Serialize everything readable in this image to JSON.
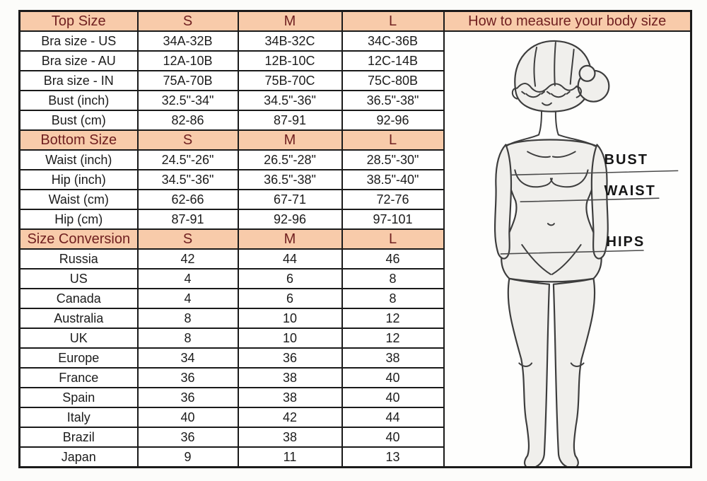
{
  "colors": {
    "header_bg": "#f8cbaa",
    "header_text": "#702020",
    "cell_text": "#1c1c1c",
    "border": "#1a1a1a",
    "figure_fill": "#f0efec",
    "figure_stroke": "#3d3d3d"
  },
  "table": {
    "sections": [
      {
        "header": {
          "label": "Top Size",
          "cols": [
            "S",
            "M",
            "L"
          ]
        },
        "rows": [
          {
            "label": "Bra size - US",
            "values": [
              "34A-32B",
              "34B-32C",
              "34C-36B"
            ]
          },
          {
            "label": "Bra size - AU",
            "values": [
              "12A-10B",
              "12B-10C",
              "12C-14B"
            ]
          },
          {
            "label": "Bra size - IN",
            "values": [
              "75A-70B",
              "75B-70C",
              "75C-80B"
            ]
          },
          {
            "label": "Bust (inch)",
            "values": [
              "32.5\"-34\"",
              "34.5\"-36\"",
              "36.5\"-38\""
            ]
          },
          {
            "label": "Bust (cm)",
            "values": [
              "82-86",
              "87-91",
              "92-96"
            ]
          }
        ]
      },
      {
        "header": {
          "label": "Bottom Size",
          "cols": [
            "S",
            "M",
            "L"
          ]
        },
        "rows": [
          {
            "label": "Waist (inch)",
            "values": [
              "24.5\"-26\"",
              "26.5\"-28\"",
              "28.5\"-30\""
            ]
          },
          {
            "label": "Hip (inch)",
            "values": [
              "34.5\"-36\"",
              "36.5\"-38\"",
              "38.5\"-40\""
            ]
          },
          {
            "label": "Waist (cm)",
            "values": [
              "62-66",
              "67-71",
              "72-76"
            ]
          },
          {
            "label": "Hip (cm)",
            "values": [
              "87-91",
              "92-96",
              "97-101"
            ]
          }
        ]
      },
      {
        "header": {
          "label": "Size Conversion",
          "cols": [
            "S",
            "M",
            "L"
          ]
        },
        "rows": [
          {
            "label": "Russia",
            "values": [
              "42",
              "44",
              "46"
            ]
          },
          {
            "label": "US",
            "values": [
              "4",
              "6",
              "8"
            ]
          },
          {
            "label": "Canada",
            "values": [
              "4",
              "6",
              "8"
            ]
          },
          {
            "label": "Australia",
            "values": [
              "8",
              "10",
              "12"
            ]
          },
          {
            "label": "UK",
            "values": [
              "8",
              "10",
              "12"
            ]
          },
          {
            "label": "Europe",
            "values": [
              "34",
              "36",
              "38"
            ]
          },
          {
            "label": "France",
            "values": [
              "36",
              "38",
              "40"
            ]
          },
          {
            "label": "Spain",
            "values": [
              "36",
              "38",
              "40"
            ]
          },
          {
            "label": "Italy",
            "values": [
              "40",
              "42",
              "44"
            ]
          },
          {
            "label": "Brazil",
            "values": [
              "36",
              "38",
              "40"
            ]
          },
          {
            "label": "Japan",
            "values": [
              "9",
              "11",
              "13"
            ]
          }
        ]
      }
    ]
  },
  "measure_panel": {
    "title": "How to measure your body size",
    "labels": {
      "bust": "BUST",
      "waist": "WAIST",
      "hips": "HIPS"
    }
  }
}
